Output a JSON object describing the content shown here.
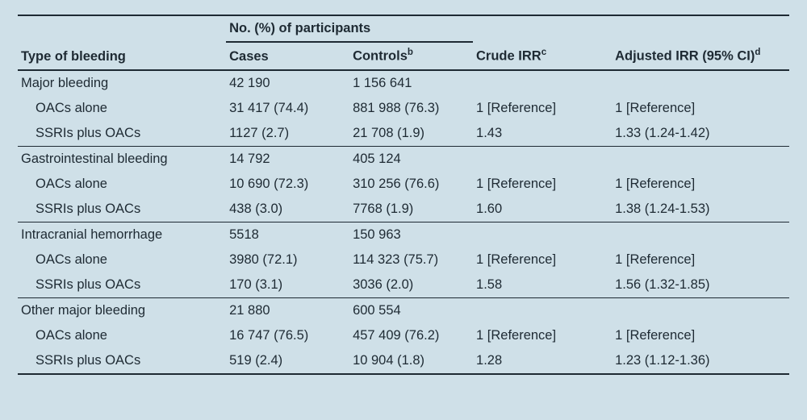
{
  "header": {
    "span_label": "No. (%) of participants",
    "col_type": "Type of bleeding",
    "col_cases": "Cases",
    "col_controls": "Controls",
    "col_controls_sup": "b",
    "col_crude": "Crude IRR",
    "col_crude_sup": "c",
    "col_adj": "Adjusted IRR (95% CI)",
    "col_adj_sup": "d"
  },
  "sections": [
    {
      "title": "Major bleeding",
      "cases_total": "42 190",
      "controls_total": "1 156 641",
      "rows": [
        {
          "label": "OACs alone",
          "cases": "31 417 (74.4)",
          "controls": "881 988 (76.3)",
          "crude": "1 [Reference]",
          "adj": "1 [Reference]"
        },
        {
          "label": "SSRIs plus OACs",
          "cases": "1127 (2.7)",
          "controls": "21 708 (1.9)",
          "crude": "1.43",
          "adj": "1.33 (1.24-1.42)"
        }
      ]
    },
    {
      "title": "Gastrointestinal bleeding",
      "cases_total": "14 792",
      "controls_total": "405 124",
      "rows": [
        {
          "label": "OACs alone",
          "cases": "10 690 (72.3)",
          "controls": "310 256 (76.6)",
          "crude": "1 [Reference]",
          "adj": "1 [Reference]"
        },
        {
          "label": "SSRIs plus OACs",
          "cases": "438 (3.0)",
          "controls": "7768 (1.9)",
          "crude": "1.60",
          "adj": "1.38 (1.24-1.53)"
        }
      ]
    },
    {
      "title": "Intracranial hemorrhage",
      "cases_total": "5518",
      "controls_total": "150 963",
      "rows": [
        {
          "label": "OACs alone",
          "cases": "3980 (72.1)",
          "controls": "114 323 (75.7)",
          "crude": "1 [Reference]",
          "adj": "1 [Reference]"
        },
        {
          "label": "SSRIs plus OACs",
          "cases": "170 (3.1)",
          "controls": "3036 (2.0)",
          "crude": "1.58",
          "adj": "1.56 (1.32-1.85)"
        }
      ]
    },
    {
      "title": "Other major bleeding",
      "cases_total": "21 880",
      "controls_total": "600 554",
      "rows": [
        {
          "label": "OACs alone",
          "cases": "16 747 (76.5)",
          "controls": "457 409 (76.2)",
          "crude": "1 [Reference]",
          "adj": "1 [Reference]"
        },
        {
          "label": "SSRIs plus OACs",
          "cases": "519 (2.4)",
          "controls": "10 904 (1.8)",
          "crude": "1.28",
          "adj": "1.23 (1.12-1.36)"
        }
      ]
    }
  ],
  "style": {
    "background": "#cfe0e8",
    "text_color": "#1e2a33",
    "rule_color": "#1e2a33",
    "font_size_pt": 12
  }
}
